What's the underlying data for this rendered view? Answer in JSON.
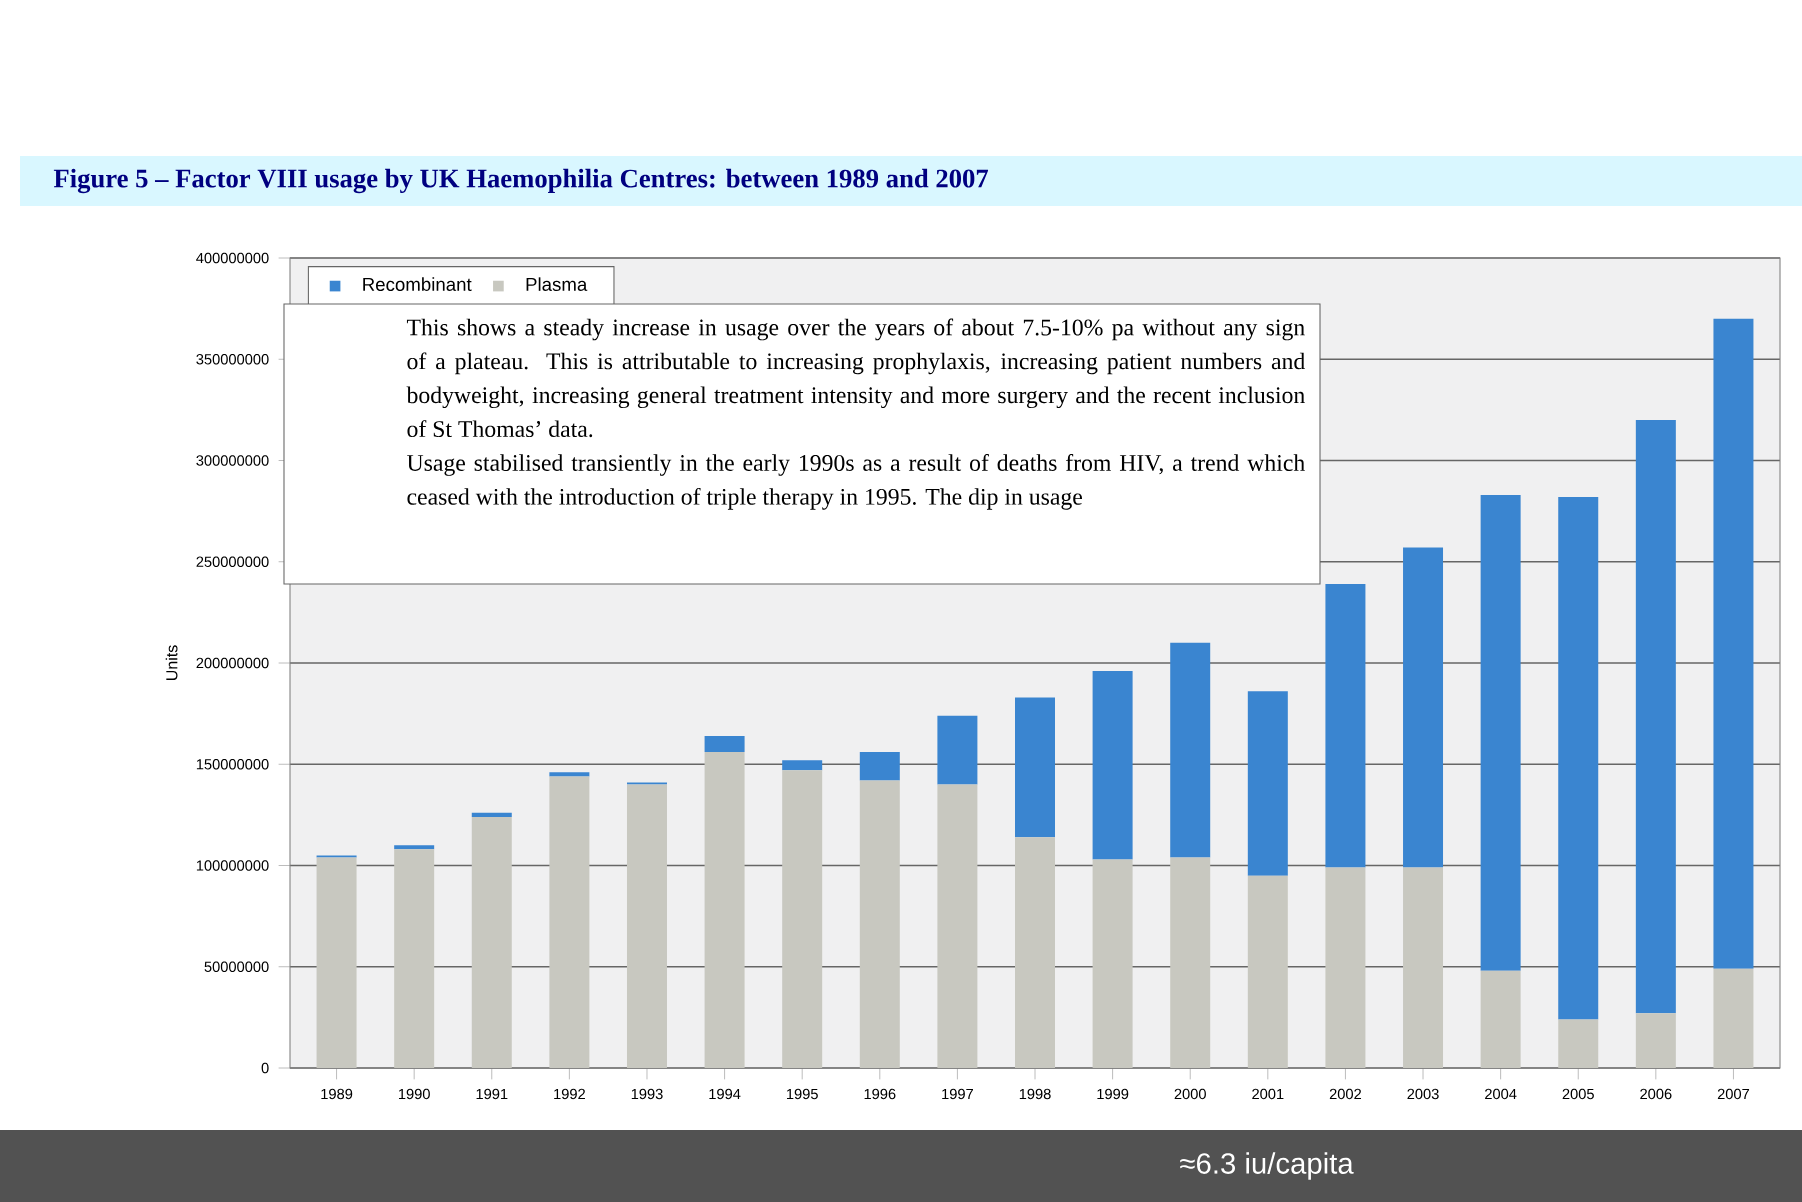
{
  "chart_data": {
    "type": "bar",
    "stacked": true,
    "title": "Figure 5 –     Factor VIII usage by UK Haemophilia Centres:  between 1989 and 2007",
    "ylabel": "Units",
    "categories": [
      "1989",
      "1990",
      "1991",
      "1992",
      "1993",
      "1994",
      "1995",
      "1996",
      "1997",
      "1998",
      "1999",
      "2000",
      "2001",
      "2002",
      "2003",
      "2004",
      "2005",
      "2006",
      "2007"
    ],
    "series": [
      {
        "name": "Plasma",
        "color": "#c8c8c0",
        "values": [
          104000000,
          108000000,
          124000000,
          144000000,
          140000000,
          156000000,
          147000000,
          142000000,
          140000000,
          114000000,
          103000000,
          104000000,
          95000000,
          99000000,
          99000000,
          48000000,
          24000000,
          27000000,
          49000000
        ]
      },
      {
        "name": "Recombinant",
        "color": "#3a85d0",
        "values": [
          1000000,
          2000000,
          2000000,
          2000000,
          1000000,
          8000000,
          5000000,
          14000000,
          34000000,
          69000000,
          93000000,
          106000000,
          91000000,
          140000000,
          158000000,
          235000000,
          258000000,
          293000000,
          321000000
        ]
      }
    ],
    "ylim": [
      0,
      400000000
    ],
    "yticks": [
      0,
      50000000,
      100000000,
      150000000,
      200000000,
      250000000,
      300000000,
      350000000,
      400000000
    ],
    "grid": "y",
    "legend": "top left",
    "annotations": [
      "This shows a steady increase in usage over the years of about 7.5-10% pa without any sign of a plateau. This is attributable to increasing prophylaxis, increasing patient numbers and bodyweight, increasing general treatment intensity and more surgery and the recent inclusion of St Thomas’ data.\nUsage stabilised transiently in the early 1990s as a result of deaths from HIV, a trend which ceased with the introduction of triple therapy in 1995. The dip in usage",
      "≈6.3 iu/capita"
    ]
  }
}
